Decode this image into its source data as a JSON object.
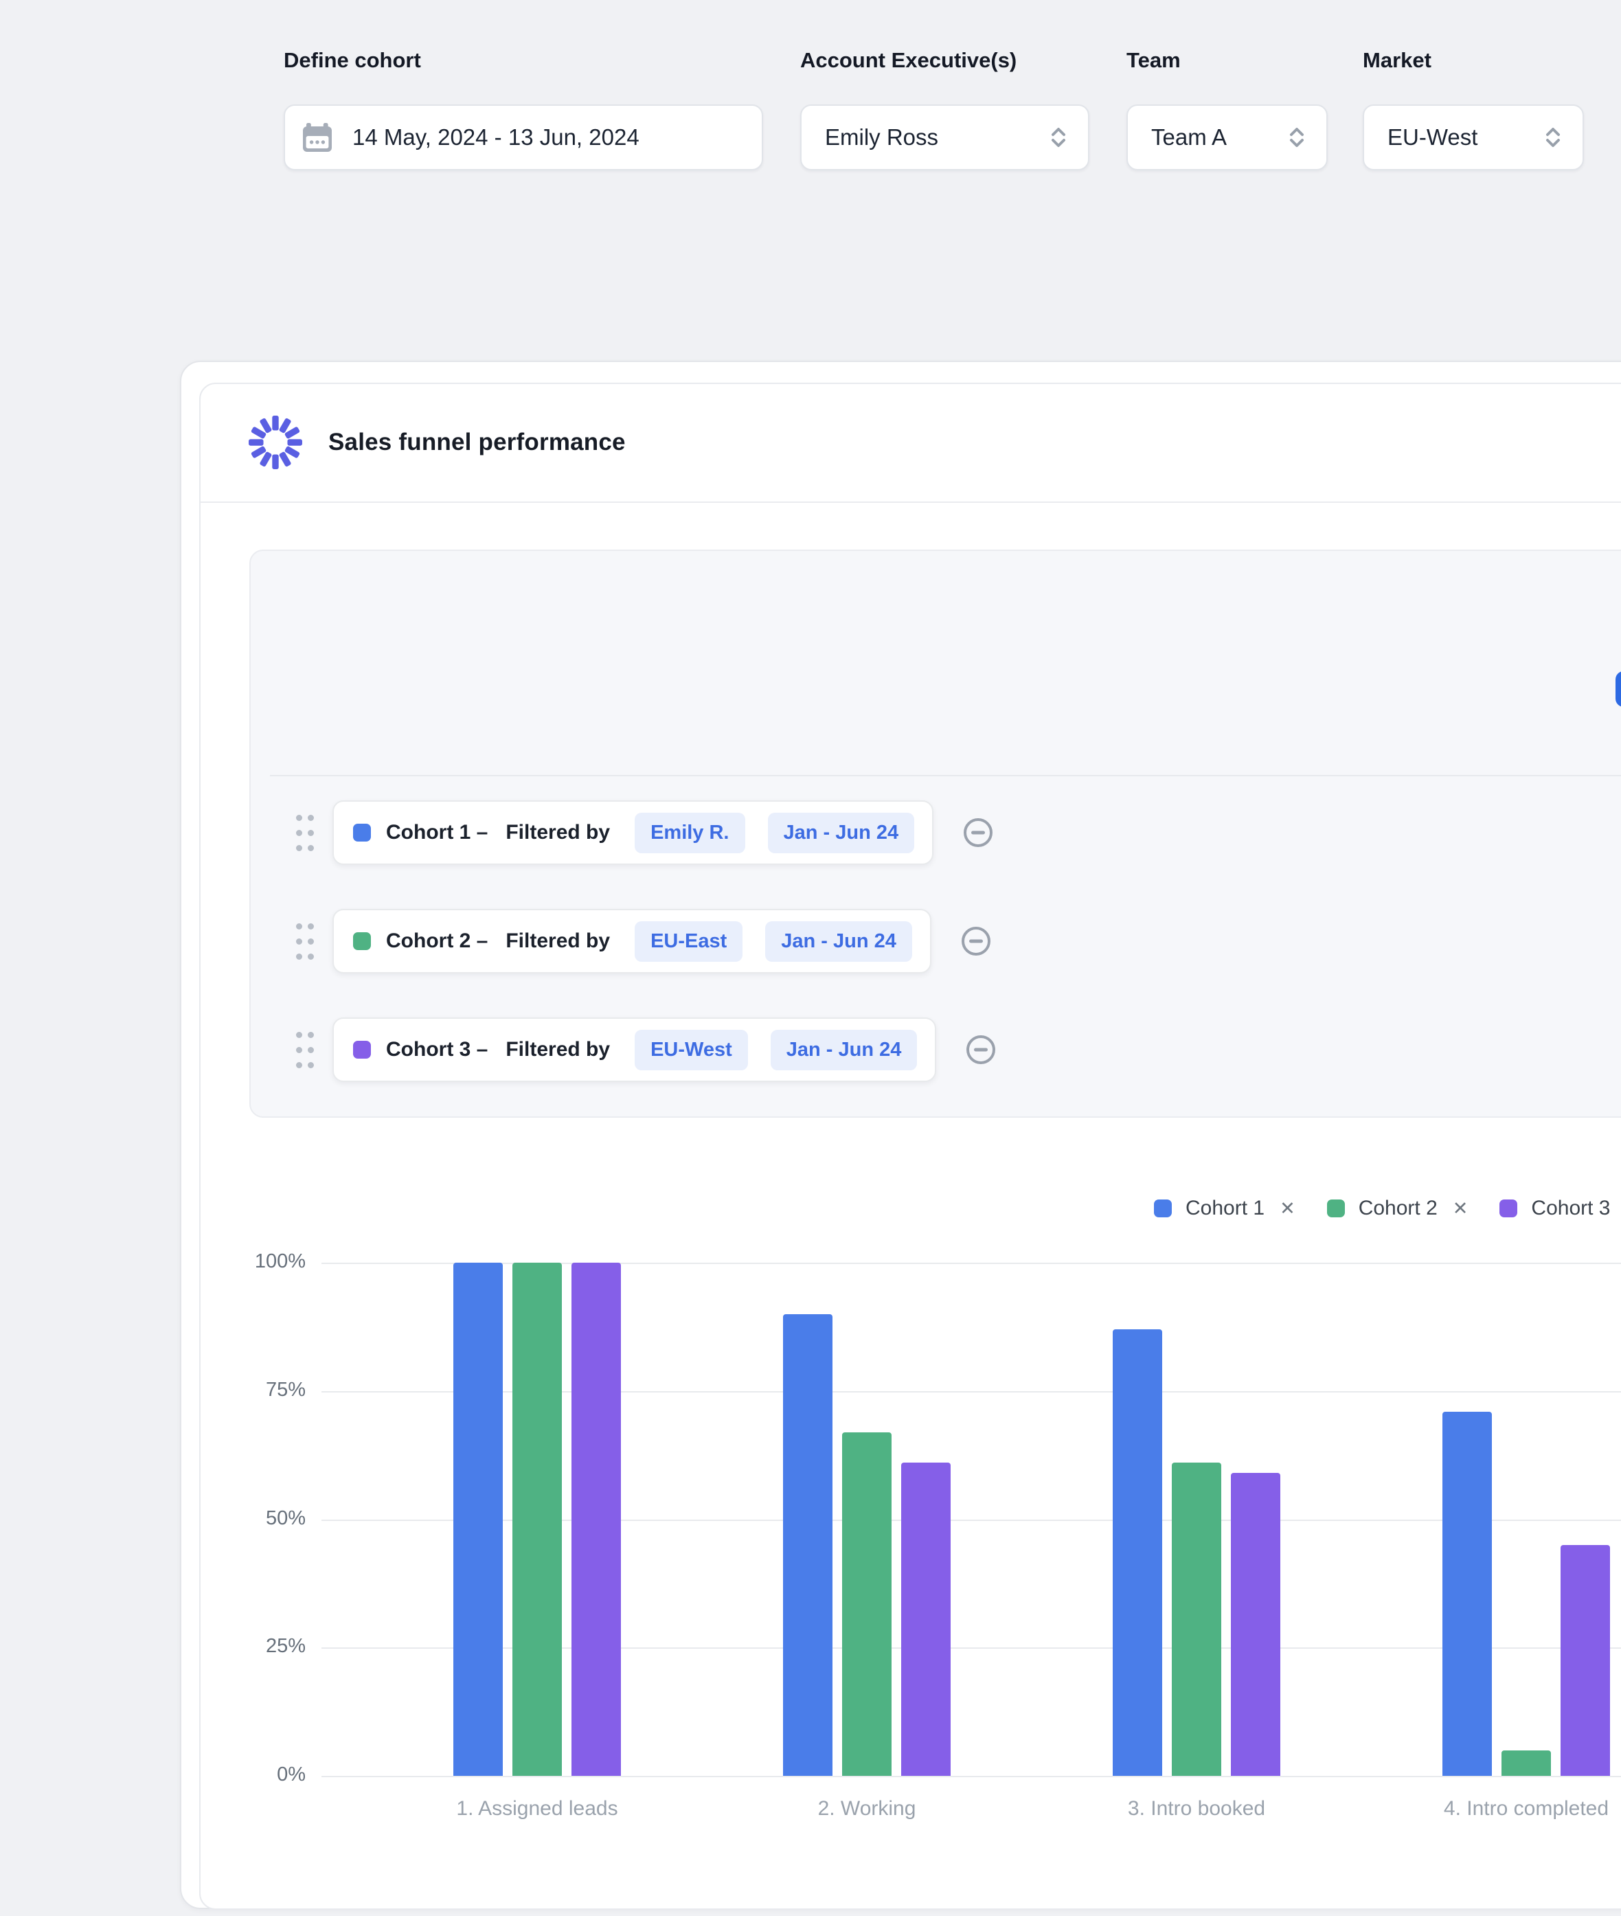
{
  "header": {
    "title": "Sales funnel performance",
    "logo_color": "#5a5fe2"
  },
  "filters": {
    "define_cohort_label": "Define cohort",
    "date_range_value": "14 May, 2024 - 13 Jun, 2024",
    "account_exec_label": "Account Executive(s)",
    "account_exec_value": "Emily Ross",
    "team_label": "Team",
    "team_value": "Team A",
    "market_label": "Market",
    "market_value": "EU-West"
  },
  "cohorts": [
    {
      "name": "Cohort 1 –",
      "filtered_by_label": "Filtered by",
      "color": "#4a7de9",
      "tags": [
        "Emily R.",
        "Jan - Jun 24"
      ]
    },
    {
      "name": "Cohort 2 –",
      "filtered_by_label": "Filtered by",
      "color": "#4fb283",
      "tags": [
        "EU-East",
        "Jan - Jun 24"
      ]
    },
    {
      "name": "Cohort 3 –",
      "filtered_by_label": "Filtered by",
      "color": "#855fe8",
      "tags": [
        "EU-West",
        "Jan - Jun 24"
      ]
    }
  ],
  "legend": [
    {
      "label": "Cohort 1",
      "color": "#4a7de9",
      "close": "✕"
    },
    {
      "label": "Cohort 2",
      "color": "#4fb283",
      "close": "✕"
    },
    {
      "label": "Cohort 3",
      "color": "#855fe8",
      "close": "✕"
    }
  ],
  "chart_data": {
    "type": "bar",
    "title": "",
    "categories": [
      "1. Assigned leads",
      "2. Working",
      "3. Intro booked",
      "4. Intro completed"
    ],
    "series": [
      {
        "name": "Cohort 1",
        "color": "#4a7de9",
        "values": [
          100,
          90,
          87,
          71
        ]
      },
      {
        "name": "Cohort 2",
        "color": "#4fb283",
        "values": [
          100,
          67,
          61,
          5
        ]
      },
      {
        "name": "Cohort 3",
        "color": "#855fe8",
        "values": [
          100,
          61,
          59,
          45
        ]
      }
    ],
    "ylabel": "",
    "ylim": [
      0,
      100
    ],
    "yticks": [
      "100%",
      "75%",
      "50%",
      "25%",
      "0%"
    ],
    "grid": true,
    "legend_position": "top-right"
  }
}
